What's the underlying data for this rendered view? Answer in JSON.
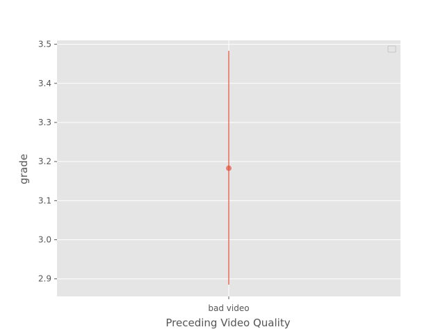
{
  "chart_data": {
    "type": "scatter",
    "categories": [
      "bad video"
    ],
    "points": [
      {
        "category": "bad video",
        "y": 3.183,
        "err_low": 2.885,
        "err_high": 3.483
      }
    ],
    "xlabel": "Preceding Video Quality",
    "ylabel": "grade",
    "ylim": [
      2.855,
      3.51
    ],
    "yticks": [
      "2.9",
      "3.0",
      "3.1",
      "3.2",
      "3.3",
      "3.4",
      "3.5"
    ],
    "grid": true,
    "legend": "top-right",
    "colors": {
      "series": "#E24A33",
      "plot_background": "#E5E5E5",
      "grid": "#FFFFFF",
      "text": "#555555"
    }
  }
}
